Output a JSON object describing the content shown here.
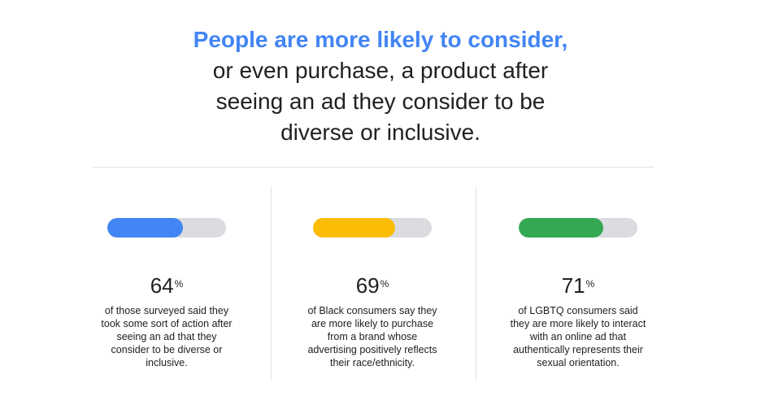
{
  "headline": {
    "lead": "People are more likely to consider,",
    "line2": "or even purchase, a product after",
    "line3": "seeing an ad they consider to be",
    "line4": "diverse or inclusive."
  },
  "stats": [
    {
      "value": "64",
      "unit": "%",
      "fraction": 0.64,
      "color": "#4285f4",
      "caption": "of those surveyed said they took some sort of action after seeing an ad that they consider to be diverse or inclusive."
    },
    {
      "value": "69",
      "unit": "%",
      "fraction": 0.69,
      "color": "#fbbc04",
      "caption": "of Black consumers say they are more likely to purchase from a brand whose advertising positively reflects their race/ethnicity."
    },
    {
      "value": "71",
      "unit": "%",
      "fraction": 0.71,
      "color": "#34a853",
      "caption": "of LGBTQ consumers said they are more likely to interact with an online ad that authentically represents their sexual orientation."
    }
  ]
}
